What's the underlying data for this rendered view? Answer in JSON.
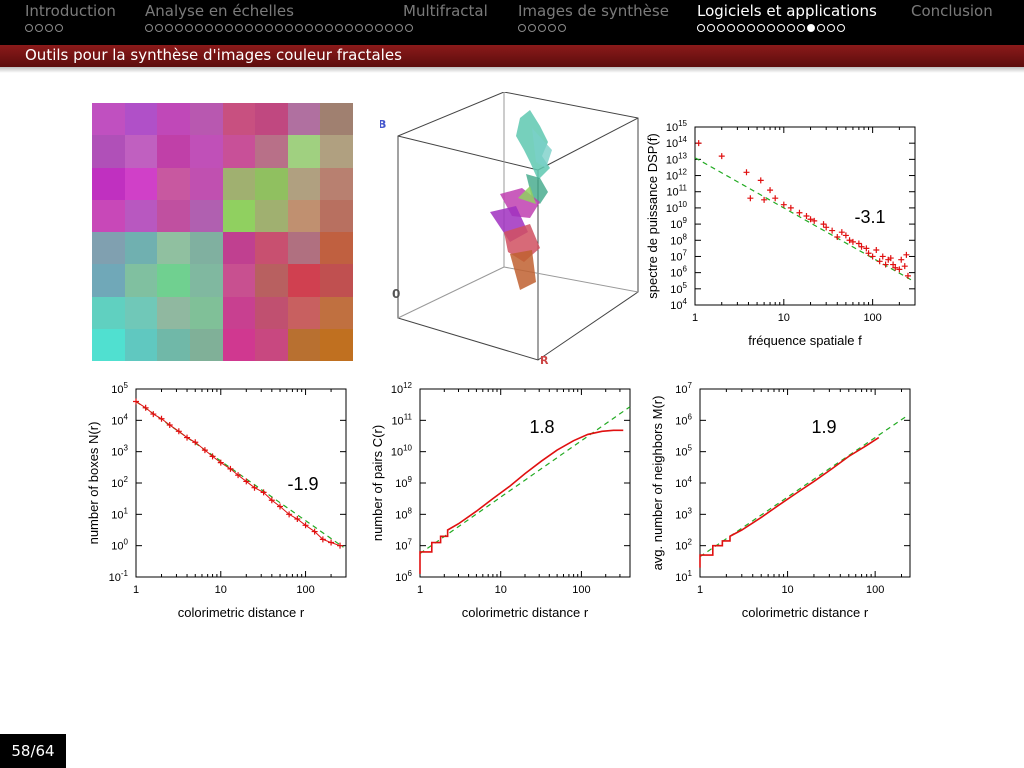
{
  "nav": {
    "sections": [
      {
        "label": "Introduction",
        "dots": 4,
        "filled": -1,
        "active": false
      },
      {
        "label": "Analyse en échelles",
        "dots": 27,
        "filled": -1,
        "active": false
      },
      {
        "label": "Multifractal",
        "dots": 0,
        "filled": -1,
        "active": false
      },
      {
        "label": "Images de synthèse",
        "dots": 5,
        "filled": -1,
        "active": false
      },
      {
        "label": "Logiciels et applications",
        "dots": 15,
        "filled": 11,
        "active": true
      },
      {
        "label": "Conclusion",
        "dots": 0,
        "filled": -1,
        "active": false
      }
    ]
  },
  "slide": {
    "subtitle": "Outils pour la synthèse d'images couleur fractales",
    "page": "58/64"
  },
  "colors": {
    "subbar": "#7a1414",
    "fit_line": "#22aa22",
    "data": "#e01010"
  },
  "cube": {
    "label_b": "B",
    "label_r": "R",
    "label_o": "0"
  },
  "plots": [
    {
      "id": "dsp",
      "type": "scatter",
      "ylabel": "spectre de puissance DSP(f)",
      "xlabel": "fréquence spatiale f",
      "annotation": "-3.1",
      "xticks": [
        "1",
        "10",
        "100"
      ],
      "yticks_exp": [
        "4",
        "5",
        "6",
        "7",
        "8",
        "9",
        "10",
        "11",
        "12",
        "13",
        "14",
        "15"
      ],
      "xlim": [
        1,
        300
      ],
      "ylim_exp": [
        4,
        15
      ],
      "series": {
        "points": [
          [
            1.1,
            14
          ],
          [
            2,
            13.2
          ],
          [
            3.8,
            12.2
          ],
          [
            5.5,
            11.7
          ],
          [
            7,
            11.1
          ],
          [
            4.2,
            10.6
          ],
          [
            6,
            10.5
          ],
          [
            8,
            10.6
          ],
          [
            10,
            10.2
          ],
          [
            12,
            10
          ],
          [
            15,
            9.7
          ],
          [
            18,
            9.5
          ],
          [
            22,
            9.2
          ],
          [
            28,
            9
          ],
          [
            35,
            8.6
          ],
          [
            40,
            8.2
          ],
          [
            50,
            8.3
          ],
          [
            60,
            7.9
          ],
          [
            75,
            7.6
          ],
          [
            90,
            7.2
          ],
          [
            110,
            7.4
          ],
          [
            130,
            7
          ],
          [
            150,
            6.8
          ],
          [
            170,
            6.5
          ],
          [
            200,
            6.2
          ],
          [
            230,
            6.4
          ],
          [
            250,
            5.8
          ],
          [
            20,
            9.3
          ],
          [
            30,
            8.8
          ],
          [
            45,
            8.5
          ],
          [
            55,
            8
          ],
          [
            70,
            7.8
          ],
          [
            85,
            7.5
          ],
          [
            100,
            7
          ],
          [
            120,
            6.7
          ],
          [
            140,
            6.5
          ],
          [
            160,
            6.9
          ],
          [
            180,
            6.3
          ],
          [
            210,
            6.8
          ],
          [
            240,
            7.1
          ]
        ],
        "fit": {
          "slope": -3.1,
          "x0": 1,
          "y0_exp": 13.1,
          "x1": 280
        }
      }
    },
    {
      "id": "boxes",
      "type": "line",
      "ylabel": "number of boxes N(r)",
      "xlabel": "colorimetric distance r",
      "annotation": "-1.9",
      "xticks": [
        "1",
        "10",
        "100"
      ],
      "yticks_exp": [
        "-1",
        "0",
        "1",
        "2",
        "3",
        "4",
        "5"
      ],
      "xlim": [
        1,
        300
      ],
      "ylim_exp": [
        -1,
        5
      ],
      "series": {
        "points": [
          [
            1,
            4.6
          ],
          [
            1.3,
            4.4
          ],
          [
            1.6,
            4.2
          ],
          [
            2,
            4.05
          ],
          [
            2.5,
            3.85
          ],
          [
            3.2,
            3.65
          ],
          [
            4,
            3.45
          ],
          [
            5,
            3.3
          ],
          [
            6.5,
            3.05
          ],
          [
            8,
            2.85
          ],
          [
            10,
            2.65
          ],
          [
            13,
            2.45
          ],
          [
            16,
            2.25
          ],
          [
            20,
            2.05
          ],
          [
            25,
            1.85
          ],
          [
            32,
            1.7
          ],
          [
            40,
            1.45
          ],
          [
            50,
            1.25
          ],
          [
            64,
            1.0
          ],
          [
            80,
            0.85
          ],
          [
            100,
            0.65
          ],
          [
            128,
            0.45
          ],
          [
            160,
            0.2
          ],
          [
            200,
            0.1
          ],
          [
            255,
            0
          ]
        ],
        "fit": {
          "slope": -1.9,
          "x0": 1,
          "y0_exp": 4.6,
          "x1": 280
        }
      }
    },
    {
      "id": "pairs",
      "type": "line",
      "ylabel": "number of pairs C(r)",
      "xlabel": "colorimetric distance r",
      "annotation": "1.8",
      "xticks": [
        "1",
        "10",
        "100"
      ],
      "yticks_exp": [
        "6",
        "7",
        "8",
        "9",
        "10",
        "11",
        "12"
      ],
      "xlim": [
        1,
        400
      ],
      "ylim_exp": [
        6,
        12
      ],
      "series": {
        "curve": [
          [
            1,
            6.1
          ],
          [
            1,
            6.8
          ],
          [
            1.4,
            6.8
          ],
          [
            1.4,
            7.1
          ],
          [
            1.8,
            7.1
          ],
          [
            1.8,
            7.3
          ],
          [
            2.2,
            7.3
          ],
          [
            2.2,
            7.5
          ],
          [
            3,
            7.7
          ],
          [
            5,
            8.1
          ],
          [
            8,
            8.5
          ],
          [
            13,
            8.9
          ],
          [
            20,
            9.3
          ],
          [
            32,
            9.7
          ],
          [
            50,
            10.05
          ],
          [
            80,
            10.35
          ],
          [
            120,
            10.55
          ],
          [
            180,
            10.65
          ],
          [
            250,
            10.68
          ],
          [
            330,
            10.68
          ]
        ],
        "fit": {
          "slope": 1.8,
          "x0": 1,
          "y0_exp": 6.75,
          "x1": 400
        }
      }
    },
    {
      "id": "neighbors",
      "type": "line",
      "ylabel": "avg. number of neighbors M(r)",
      "xlabel": "colorimetric distance r",
      "annotation": "1.9",
      "xticks": [
        "1",
        "10",
        "100"
      ],
      "yticks_exp": [
        "1",
        "2",
        "3",
        "4",
        "5",
        "6",
        "7"
      ],
      "xlim": [
        1,
        250
      ],
      "ylim_exp": [
        1,
        7
      ],
      "series": {
        "curve": [
          [
            1,
            1.3
          ],
          [
            1,
            1.7
          ],
          [
            1.4,
            1.7
          ],
          [
            1.4,
            2.0
          ],
          [
            1.8,
            2.0
          ],
          [
            1.8,
            2.15
          ],
          [
            2.2,
            2.15
          ],
          [
            2.2,
            2.3
          ],
          [
            3,
            2.5
          ],
          [
            5,
            2.9
          ],
          [
            8,
            3.3
          ],
          [
            13,
            3.7
          ],
          [
            20,
            4.05
          ],
          [
            32,
            4.45
          ],
          [
            50,
            4.85
          ],
          [
            80,
            5.2
          ],
          [
            110,
            5.45
          ]
        ],
        "fit": {
          "slope": 1.9,
          "x0": 1,
          "y0_exp": 1.65,
          "x1": 220
        }
      }
    }
  ]
}
